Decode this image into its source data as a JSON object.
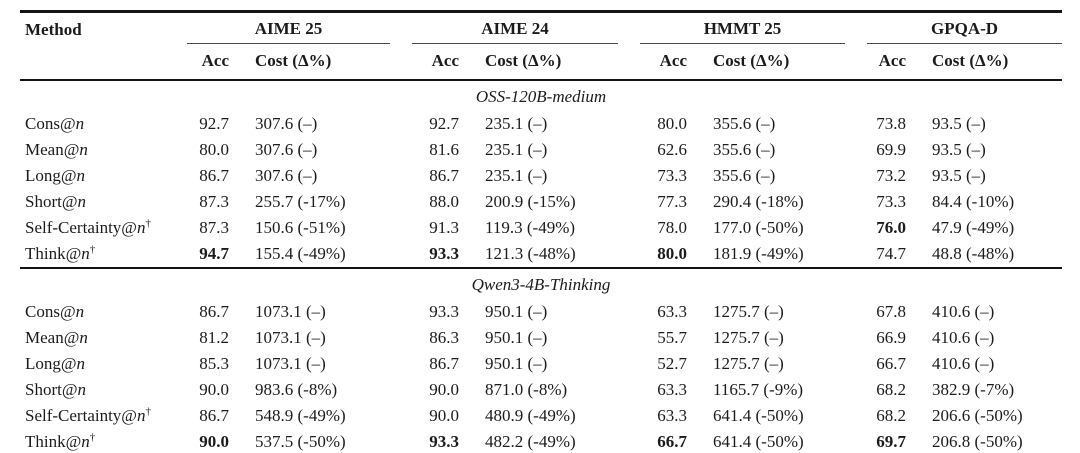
{
  "table": {
    "method_header": "Method",
    "dagger_symbol": "†",
    "groups": [
      {
        "label": "AIME 25",
        "sub": [
          "Acc",
          "Cost (Δ%)"
        ]
      },
      {
        "label": "AIME 24",
        "sub": [
          "Acc",
          "Cost (Δ%)"
        ]
      },
      {
        "label": "HMMT 25",
        "sub": [
          "Acc",
          "Cost (Δ%)"
        ]
      },
      {
        "label": "GPQA-D",
        "sub": [
          "Acc",
          "Cost (Δ%)"
        ]
      }
    ],
    "sections": [
      {
        "title": "OSS-120B-medium",
        "rows": [
          {
            "method": "Cons@n",
            "dagger": false,
            "cells": [
              "92.7",
              "307.6 (–)",
              "92.7",
              "235.1 (–)",
              "80.0",
              "355.6 (–)",
              "73.8",
              "93.5 (–)"
            ],
            "bold": []
          },
          {
            "method": "Mean@n",
            "dagger": false,
            "cells": [
              "80.0",
              "307.6 (–)",
              "81.6",
              "235.1 (–)",
              "62.6",
              "355.6 (–)",
              "69.9",
              "93.5 (–)"
            ],
            "bold": []
          },
          {
            "method": "Long@n",
            "dagger": false,
            "cells": [
              "86.7",
              "307.6 (–)",
              "86.7",
              "235.1 (–)",
              "73.3",
              "355.6 (–)",
              "73.2",
              "93.5 (–)"
            ],
            "bold": []
          },
          {
            "method": "Short@n",
            "dagger": false,
            "cells": [
              "87.3",
              "255.7 (-17%)",
              "88.0",
              "200.9 (-15%)",
              "77.3",
              "290.4 (-18%)",
              "73.3",
              "84.4 (-10%)"
            ],
            "bold": []
          },
          {
            "method": "Self-Certainty@n",
            "dagger": true,
            "cells": [
              "87.3",
              "150.6 (-51%)",
              "91.3",
              "119.3 (-49%)",
              "78.0",
              "177.0 (-50%)",
              "76.0",
              "47.9 (-49%)"
            ],
            "bold": [
              6
            ]
          },
          {
            "method": "Think@n",
            "dagger": true,
            "cells": [
              "94.7",
              "155.4 (-49%)",
              "93.3",
              "121.3 (-48%)",
              "80.0",
              "181.9 (-49%)",
              "74.7",
              "48.8 (-48%)"
            ],
            "bold": [
              0,
              2,
              4
            ]
          }
        ]
      },
      {
        "title": "Qwen3-4B-Thinking",
        "rows": [
          {
            "method": "Cons@n",
            "dagger": false,
            "cells": [
              "86.7",
              "1073.1 (–)",
              "93.3",
              "950.1 (–)",
              "63.3",
              "1275.7 (–)",
              "67.8",
              "410.6 (–)"
            ],
            "bold": []
          },
          {
            "method": "Mean@n",
            "dagger": false,
            "cells": [
              "81.2",
              "1073.1 (–)",
              "86.3",
              "950.1 (–)",
              "55.7",
              "1275.7 (–)",
              "66.9",
              "410.6 (–)"
            ],
            "bold": []
          },
          {
            "method": "Long@n",
            "dagger": false,
            "cells": [
              "85.3",
              "1073.1 (–)",
              "86.7",
              "950.1 (–)",
              "52.7",
              "1275.7 (–)",
              "66.7",
              "410.6 (–)"
            ],
            "bold": []
          },
          {
            "method": "Short@n",
            "dagger": false,
            "cells": [
              "90.0",
              "983.6 (-8%)",
              "90.0",
              "871.0 (-8%)",
              "63.3",
              "1165.7 (-9%)",
              "68.2",
              "382.9 (-7%)"
            ],
            "bold": []
          },
          {
            "method": "Self-Certainty@n",
            "dagger": true,
            "cells": [
              "86.7",
              "548.9 (-49%)",
              "90.0",
              "480.9 (-49%)",
              "63.3",
              "641.4 (-50%)",
              "68.2",
              "206.6 (-50%)"
            ],
            "bold": []
          },
          {
            "method": "Think@n",
            "dagger": true,
            "cells": [
              "90.0",
              "537.5 (-50%)",
              "93.3",
              "482.2 (-49%)",
              "66.7",
              "641.4 (-50%)",
              "69.7",
              "206.8 (-50%)"
            ],
            "bold": [
              0,
              2,
              4,
              6
            ]
          }
        ]
      }
    ]
  }
}
